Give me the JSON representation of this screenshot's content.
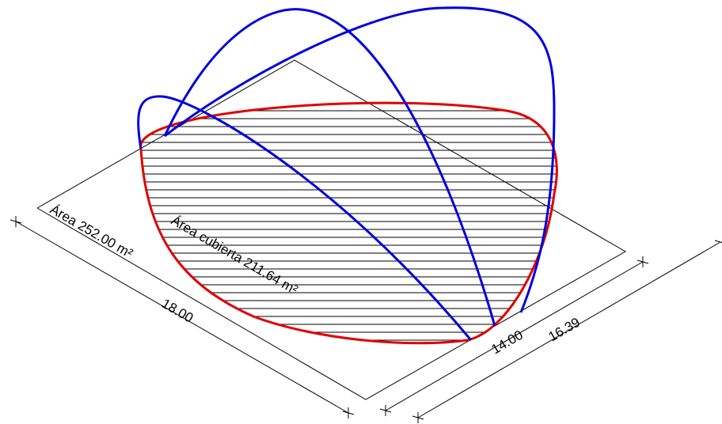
{
  "labels": {
    "plot_area": "Área 252.00 m²",
    "covered_area": "Área cubierta 211.64 m²",
    "dim_long": "18.00",
    "dim_short": "14.00",
    "dim_diag": "16.39"
  },
  "colors": {
    "outline": "#000000",
    "perimeter": "#e00000",
    "arches": "#0000dd",
    "hatch": "#000000"
  }
}
